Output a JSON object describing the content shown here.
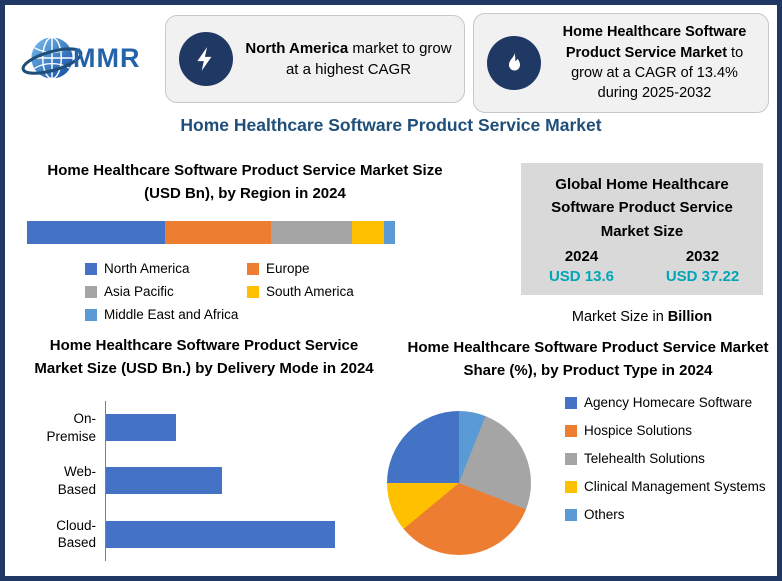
{
  "title": "Home Healthcare Software Product Service Market",
  "colors": {
    "border_navy": "#203864",
    "title_blue": "#1F4E79",
    "teal_accent": "#00A5B8",
    "stats_box_gray": "#D9D9D9"
  },
  "header": {
    "logo_text": "MMR",
    "callouts": [
      {
        "icon": "lightning-icon",
        "bold": "North America",
        "rest": " market to grow at a highest CAGR"
      },
      {
        "icon": "flame-icon",
        "bold": "Home Healthcare Software Product Service Market",
        "rest": " to grow at a CAGR of 13.4% during 2025-2032"
      }
    ]
  },
  "stats_box": {
    "title": "Global Home Healthcare Software Product Service Market Size",
    "years": [
      "2024",
      "2032"
    ],
    "values": [
      "USD 13.6",
      "USD 37.22"
    ],
    "value_color": "#00A5B8",
    "note_regular": "Market Size in ",
    "note_bold": "Billion"
  },
  "chart_data": [
    {
      "id": "region",
      "type": "bar",
      "subtype": "stacked-horizontal",
      "title": "Home Healthcare Software Product Service Market Size (USD Bn), by Region in 2024",
      "unit": "USD Bn",
      "total": 13.6,
      "segments": [
        {
          "label": "North America",
          "value": 5.1,
          "color": "#4472C4"
        },
        {
          "label": "Europe",
          "value": 3.9,
          "color": "#ED7D31"
        },
        {
          "label": "Asia Pacific",
          "value": 3.0,
          "color": "#A5A5A5"
        },
        {
          "label": "South America",
          "value": 1.2,
          "color": "#FFC000"
        },
        {
          "label": "Middle East and Africa",
          "value": 0.4,
          "color": "#5B9BD5"
        }
      ],
      "legend_position": "below"
    },
    {
      "id": "delivery",
      "type": "bar",
      "subtype": "horizontal",
      "title": "Home Healthcare Software Product Service Market Size (USD Bn.) by Delivery Mode in 2024",
      "unit": "USD Bn.",
      "categories": [
        "On-\nPremise",
        "Web-Based",
        "Cloud-\nBased"
      ],
      "values": [
        2.3,
        3.8,
        7.5
      ],
      "bar_color": "#4472C4",
      "xlim": [
        0,
        8.5
      ],
      "grid": false
    },
    {
      "id": "product-share",
      "type": "pie",
      "title": "Home Healthcare Software Product Service Market Share (%), by  Product Type in 2024",
      "slices": [
        {
          "label": "Agency Homecare Software",
          "value": 25,
          "color": "#4472C4"
        },
        {
          "label": "Hospice Solutions",
          "value": 33,
          "color": "#ED7D31"
        },
        {
          "label": "Telehealth Solutions",
          "value": 25,
          "color": "#A5A5A5"
        },
        {
          "label": "Clinical Management Systems",
          "value": 11,
          "color": "#FFC000"
        },
        {
          "label": "Others",
          "value": 6,
          "color": "#5B9BD5"
        }
      ],
      "clockwise_from_top_order": [
        4,
        2,
        1,
        3,
        0
      ],
      "legend_position": "right"
    }
  ]
}
